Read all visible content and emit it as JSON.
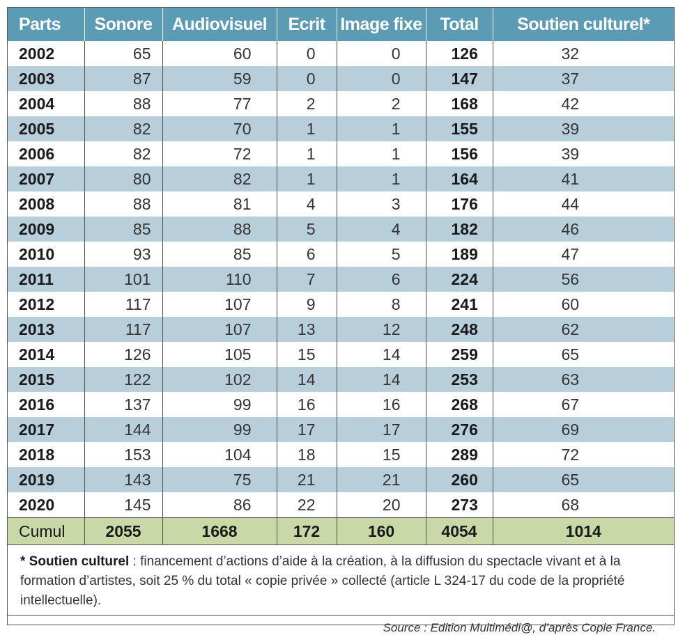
{
  "chart_data": {
    "type": "table",
    "columns": [
      "Parts",
      "Sonore",
      "Audiovisuel",
      "Ecrit",
      "Image fixe",
      "Total",
      "Soutien culturel*"
    ],
    "rows": [
      [
        "2002",
        "65",
        "60",
        "0",
        "0",
        "126",
        "32"
      ],
      [
        "2003",
        "87",
        "59",
        "0",
        "0",
        "147",
        "37"
      ],
      [
        "2004",
        "88",
        "77",
        "2",
        "2",
        "168",
        "42"
      ],
      [
        "2005",
        "82",
        "70",
        "1",
        "1",
        "155",
        "39"
      ],
      [
        "2006",
        "82",
        "72",
        "1",
        "1",
        "156",
        "39"
      ],
      [
        "2007",
        "80",
        "82",
        "1",
        "1",
        "164",
        "41"
      ],
      [
        "2008",
        "88",
        "81",
        "4",
        "3",
        "176",
        "44"
      ],
      [
        "2009",
        "85",
        "88",
        "5",
        "4",
        "182",
        "46"
      ],
      [
        "2010",
        "93",
        "85",
        "6",
        "5",
        "189",
        "47"
      ],
      [
        "2011",
        "101",
        "110",
        "7",
        "6",
        "224",
        "56"
      ],
      [
        "2012",
        "117",
        "107",
        "9",
        "8",
        "241",
        "60"
      ],
      [
        "2013",
        "117",
        "107",
        "13",
        "12",
        "248",
        "62"
      ],
      [
        "2014",
        "126",
        "105",
        "15",
        "14",
        "259",
        "65"
      ],
      [
        "2015",
        "122",
        "102",
        "14",
        "14",
        "253",
        "63"
      ],
      [
        "2016",
        "137",
        "99",
        "16",
        "16",
        "268",
        "67"
      ],
      [
        "2017",
        "144",
        "99",
        "17",
        "17",
        "276",
        "69"
      ],
      [
        "2018",
        "153",
        "104",
        "18",
        "15",
        "289",
        "72"
      ],
      [
        "2019",
        "143",
        "75",
        "21",
        "21",
        "260",
        "65"
      ],
      [
        "2020",
        "145",
        "86",
        "22",
        "20",
        "273",
        "68"
      ]
    ],
    "cumul": [
      "Cumul",
      "2055",
      "1668",
      "172",
      "160",
      "4054",
      "1014"
    ]
  },
  "note": {
    "term": "* Soutien culturel",
    "text": " : financement d’actions d’aide à la création, à la diffusion du spectacle vivant et à la formation d’artistes, soit 25 % du total « copie privée » collecté (article L 324-17 du code de la propriété intellectuelle)."
  },
  "source": "Source : Edition Multimédi@, d’après Copie France.",
  "colors": {
    "header": "#5b9bb3",
    "stripe": "#b8cfdb",
    "cumul": "#c9d8a6"
  }
}
